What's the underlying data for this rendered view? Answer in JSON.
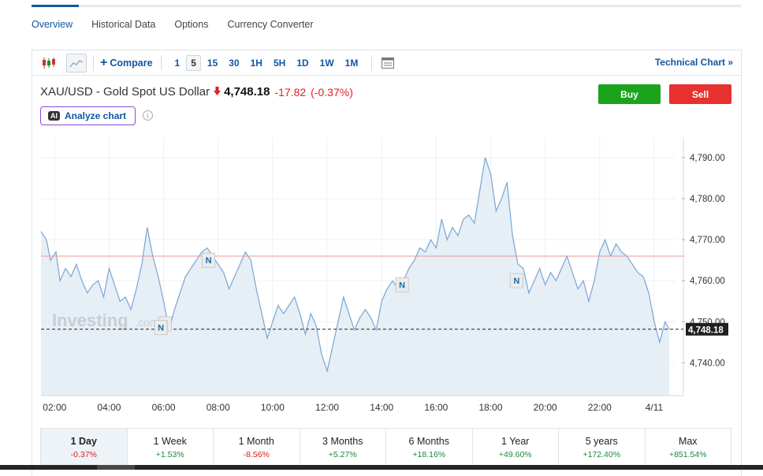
{
  "tabs": [
    {
      "label": "Overview",
      "active": true
    },
    {
      "label": "Historical Data"
    },
    {
      "label": "Options"
    },
    {
      "label": "Currency Converter"
    }
  ],
  "toolbar": {
    "compare_label": "Compare",
    "intervals": [
      "1",
      "5",
      "15",
      "30",
      "1H",
      "5H",
      "1D",
      "1W",
      "1M"
    ],
    "active_interval": "5",
    "technical_chart_label": "Technical Chart »"
  },
  "quote": {
    "name": "XAU/USD - Gold Spot US Dollar",
    "price": "4,748.18",
    "change": "-17.82",
    "change_pct": "(-0.37%)",
    "direction": "down"
  },
  "actions": {
    "buy": "Buy",
    "sell": "Sell"
  },
  "analyze": {
    "badge": "AI",
    "label": "Analyze chart"
  },
  "watermark": "Investing",
  "watermark_suffix": ".com",
  "chart_data": {
    "type": "area",
    "ylim": [
      4732,
      4795
    ],
    "yticks": [
      4740,
      4750,
      4760,
      4770,
      4780,
      4790
    ],
    "ytick_labels": [
      "4,740.00",
      "4,750.00",
      "4,760.00",
      "4,770.00",
      "4,780.00",
      "4,790.00"
    ],
    "xlim": [
      1.5,
      25.1
    ],
    "xticks": [
      2,
      4,
      6,
      8,
      10,
      12,
      14,
      16,
      18,
      20,
      22,
      24
    ],
    "xtick_labels": [
      "02:00",
      "04:00",
      "06:00",
      "08:00",
      "10:00",
      "12:00",
      "14:00",
      "16:00",
      "18:00",
      "20:00",
      "22:00",
      "4/11"
    ],
    "previous_close": 4766.0,
    "last_price": 4748.18,
    "last_price_label": "4,748.18",
    "news_markers": [
      {
        "x": 7.65,
        "y": 4765,
        "label": "N"
      },
      {
        "x": 6.05,
        "y": 4749.5,
        "label": "N"
      },
      {
        "x": 5.9,
        "y": 4748.6,
        "label": "N"
      },
      {
        "x": 14.75,
        "y": 4759,
        "label": "N"
      },
      {
        "x": 18.95,
        "y": 4760,
        "label": "N"
      }
    ],
    "series": [
      {
        "values": [
          [
            1.5,
            4772
          ],
          [
            1.7,
            4770
          ],
          [
            1.85,
            4765
          ],
          [
            2.05,
            4767
          ],
          [
            2.2,
            4760
          ],
          [
            2.4,
            4763
          ],
          [
            2.6,
            4761
          ],
          [
            2.8,
            4764
          ],
          [
            3.0,
            4760
          ],
          [
            3.2,
            4757
          ],
          [
            3.4,
            4759
          ],
          [
            3.6,
            4760
          ],
          [
            3.8,
            4756
          ],
          [
            4.0,
            4763
          ],
          [
            4.2,
            4759
          ],
          [
            4.4,
            4755
          ],
          [
            4.6,
            4756
          ],
          [
            4.8,
            4753
          ],
          [
            5.0,
            4758
          ],
          [
            5.2,
            4764
          ],
          [
            5.4,
            4773
          ],
          [
            5.6,
            4766
          ],
          [
            5.8,
            4761
          ],
          [
            6.0,
            4755
          ],
          [
            6.2,
            4748
          ],
          [
            6.4,
            4753
          ],
          [
            6.6,
            4757
          ],
          [
            6.8,
            4761
          ],
          [
            7.0,
            4763
          ],
          [
            7.2,
            4765
          ],
          [
            7.4,
            4767
          ],
          [
            7.6,
            4768
          ],
          [
            7.8,
            4766
          ],
          [
            8.0,
            4764
          ],
          [
            8.2,
            4762
          ],
          [
            8.4,
            4758
          ],
          [
            8.6,
            4761
          ],
          [
            8.8,
            4764
          ],
          [
            9.0,
            4767
          ],
          [
            9.2,
            4765
          ],
          [
            9.4,
            4758
          ],
          [
            9.6,
            4752
          ],
          [
            9.8,
            4746
          ],
          [
            10.0,
            4750
          ],
          [
            10.2,
            4754
          ],
          [
            10.4,
            4752
          ],
          [
            10.6,
            4754
          ],
          [
            10.8,
            4756
          ],
          [
            11.0,
            4752
          ],
          [
            11.2,
            4747
          ],
          [
            11.4,
            4752
          ],
          [
            11.6,
            4749
          ],
          [
            11.8,
            4742
          ],
          [
            12.0,
            4738
          ],
          [
            12.2,
            4744
          ],
          [
            12.4,
            4750
          ],
          [
            12.6,
            4756
          ],
          [
            12.8,
            4752
          ],
          [
            13.0,
            4748
          ],
          [
            13.2,
            4751
          ],
          [
            13.4,
            4753
          ],
          [
            13.6,
            4751
          ],
          [
            13.8,
            4748
          ],
          [
            14.0,
            4755
          ],
          [
            14.2,
            4758
          ],
          [
            14.4,
            4760
          ],
          [
            14.6,
            4758
          ],
          [
            14.8,
            4760
          ],
          [
            15.0,
            4763
          ],
          [
            15.2,
            4765
          ],
          [
            15.4,
            4768
          ],
          [
            15.6,
            4767
          ],
          [
            15.8,
            4770
          ],
          [
            16.0,
            4768
          ],
          [
            16.2,
            4775
          ],
          [
            16.4,
            4770
          ],
          [
            16.6,
            4773
          ],
          [
            16.8,
            4771
          ],
          [
            17.0,
            4775
          ],
          [
            17.2,
            4776
          ],
          [
            17.4,
            4774
          ],
          [
            17.6,
            4782
          ],
          [
            17.8,
            4790
          ],
          [
            18.0,
            4786
          ],
          [
            18.2,
            4777
          ],
          [
            18.4,
            4780
          ],
          [
            18.6,
            4784
          ],
          [
            18.8,
            4771
          ],
          [
            19.0,
            4764
          ],
          [
            19.2,
            4763
          ],
          [
            19.4,
            4757
          ],
          [
            19.6,
            4760
          ],
          [
            19.8,
            4763
          ],
          [
            20.0,
            4759
          ],
          [
            20.2,
            4762
          ],
          [
            20.4,
            4760
          ],
          [
            20.6,
            4763
          ],
          [
            20.8,
            4766
          ],
          [
            21.0,
            4762
          ],
          [
            21.2,
            4758
          ],
          [
            21.4,
            4760
          ],
          [
            21.6,
            4755
          ],
          [
            21.8,
            4760
          ],
          [
            22.0,
            4767
          ],
          [
            22.2,
            4770
          ],
          [
            22.4,
            4766
          ],
          [
            22.6,
            4769
          ],
          [
            22.8,
            4767
          ],
          [
            23.0,
            4766
          ],
          [
            23.2,
            4764
          ],
          [
            23.4,
            4762
          ],
          [
            23.6,
            4761
          ],
          [
            23.8,
            4757
          ],
          [
            24.0,
            4750
          ],
          [
            24.2,
            4745
          ],
          [
            24.4,
            4750
          ],
          [
            24.55,
            4748.18
          ]
        ]
      }
    ]
  },
  "periods": [
    {
      "label": "1 Day",
      "change": "-0.37%",
      "direction": "neg",
      "active": true
    },
    {
      "label": "1 Week",
      "change": "+1.53%",
      "direction": "pos"
    },
    {
      "label": "1 Month",
      "change": "-8.56%",
      "direction": "neg"
    },
    {
      "label": "3 Months",
      "change": "+5.27%",
      "direction": "pos"
    },
    {
      "label": "6 Months",
      "change": "+18.16%",
      "direction": "pos"
    },
    {
      "label": "1 Year",
      "change": "+49.60%",
      "direction": "pos"
    },
    {
      "label": "5 years",
      "change": "+172.40%",
      "direction": "pos"
    },
    {
      "label": "Max",
      "change": "+851.54%",
      "direction": "pos"
    }
  ]
}
